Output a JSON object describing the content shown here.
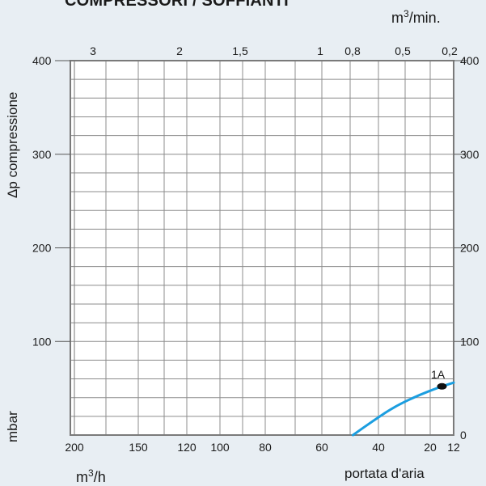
{
  "chart_data": {
    "type": "line",
    "title": "COMPRESSORI / SOFFIANTI",
    "ylabel": "Δp compressione",
    "yunit": "mbar",
    "xlabel": "portata d'aria",
    "xunit_bottom": "m",
    "xunit_top": "m",
    "unit_exponent": "3",
    "xunit_top_suffix": "/min.",
    "xunit_bottom_suffix": "/h",
    "ylim": [
      0,
      400
    ],
    "y_ticks_left": [
      "400",
      "300",
      "200",
      "100"
    ],
    "y_ticks_right": [
      "400",
      "300",
      "200",
      "100",
      "0"
    ],
    "x_ticks_bottom": [
      {
        "value": 200,
        "label": "200"
      },
      {
        "value": 150,
        "label": "150"
      },
      {
        "value": 120,
        "label": "120"
      },
      {
        "value": 100,
        "label": "100"
      },
      {
        "value": 80,
        "label": "80"
      },
      {
        "value": 60,
        "label": "60"
      },
      {
        "value": 40,
        "label": "40"
      },
      {
        "value": 20,
        "label": "20"
      },
      {
        "value": 12,
        "label": "12"
      }
    ],
    "x_ticks_top": [
      {
        "value": 3,
        "label": "3"
      },
      {
        "value": 2,
        "label": "2"
      },
      {
        "value": 1.5,
        "label": "1,5"
      },
      {
        "value": 1,
        "label": "1"
      },
      {
        "value": 0.8,
        "label": "0,8"
      },
      {
        "value": 0.5,
        "label": "0,5"
      },
      {
        "value": 0.2,
        "label": "0,2"
      }
    ],
    "series": [
      {
        "name": "1A",
        "color": "#1b9ee0",
        "points": [
          {
            "x": 49,
            "y": 0
          },
          {
            "x": 42,
            "y": 15
          },
          {
            "x": 34,
            "y": 30
          },
          {
            "x": 25,
            "y": 42
          },
          {
            "x": 17,
            "y": 51
          },
          {
            "x": 12,
            "y": 56
          }
        ],
        "marker": {
          "x": 16,
          "y": 52,
          "label": "1A"
        }
      }
    ],
    "grid": true
  },
  "colors": {
    "background": "#e8eef3",
    "plot": "#ffffff",
    "grid": "#8c8c8c",
    "curve": "#1b9ee0"
  }
}
